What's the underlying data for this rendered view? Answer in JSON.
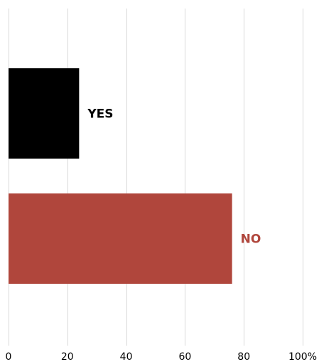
{
  "chart_data": {
    "type": "bar",
    "orientation": "horizontal",
    "categories": [
      "YES",
      "NO"
    ],
    "values": [
      24,
      76
    ],
    "colors": [
      "#000000",
      "#b0463c"
    ],
    "label_colors": [
      "#000000",
      "#b0463c"
    ],
    "xlim": [
      0,
      100
    ],
    "xticks": [
      0,
      20,
      40,
      60,
      80,
      100
    ],
    "xtick_labels": [
      "0",
      "20",
      "40",
      "60",
      "80",
      "100%"
    ],
    "grid": true,
    "legend": "none",
    "title": "",
    "xlabel": "",
    "ylabel": ""
  }
}
